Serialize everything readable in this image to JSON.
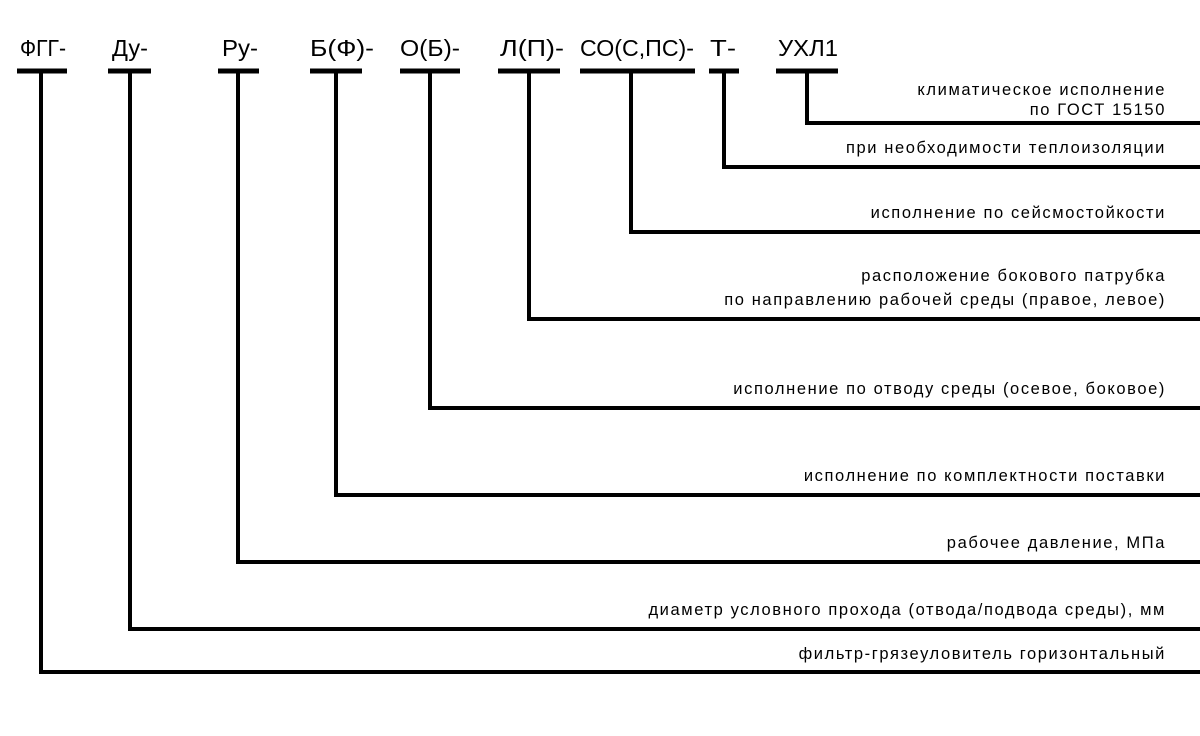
{
  "codes": [
    "ФГГ-",
    "Ду-",
    "Ру-",
    "Б(Ф)-",
    "О(Б)-",
    "Л(П)-",
    "СО(С,ПС)-",
    "Т-",
    "УХЛ1"
  ],
  "descriptions": {
    "climate_1": "климатическое исполнение",
    "climate_2": "по ГОСТ 15150",
    "insulation": "при необходимости теплоизоляции",
    "seismic": "исполнение по сейсмостойкости",
    "nozzle_1": "расположение бокового патрубка",
    "nozzle_2": "по направлению рабочей среды (правое, левое)",
    "outlet": "исполнение по отводу среды (осевое, боковое)",
    "delivery": "исполнение по комплектности поставки",
    "pressure": "рабочее давление, МПа",
    "diameter": "диаметр условного прохода (отвода/подвода среды), мм",
    "filter": "фильтр-грязеуловитель горизонтальный"
  }
}
